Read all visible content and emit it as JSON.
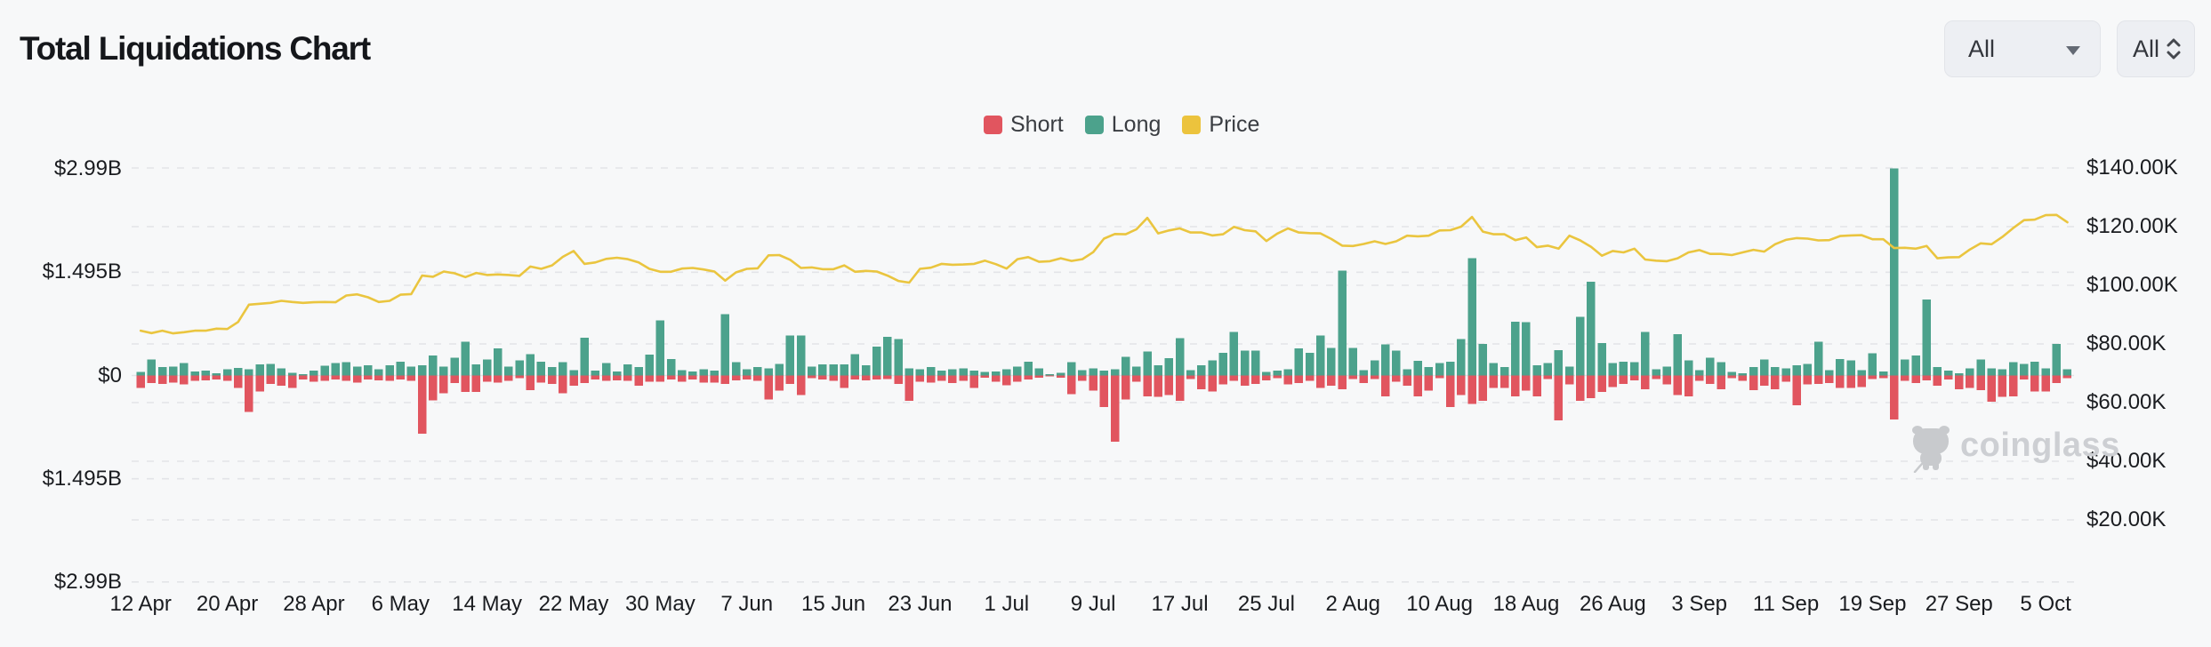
{
  "header": {
    "title": "Total Liquidations Chart"
  },
  "controls": {
    "symbol_select": {
      "value": "All"
    },
    "range_select": {
      "value": "All"
    }
  },
  "legend": {
    "items": [
      {
        "label": "Short",
        "color": "#e1555f"
      },
      {
        "label": "Long",
        "color": "#4ca28c"
      },
      {
        "label": "Price",
        "color": "#ecc33d"
      }
    ]
  },
  "watermark": {
    "text": "coinglass"
  },
  "colors": {
    "short": "#e1555f",
    "long": "#4ca28c",
    "price": "#eac53f",
    "gridline": "#e3e4e8",
    "background": "#f7f8f9"
  },
  "chart_data": {
    "type": "bar+line",
    "title": "Total Liquidations Chart",
    "grid": "dashed horizontal",
    "legend_position": "top-center",
    "x_tick_labels": [
      "12 Apr",
      "20 Apr",
      "28 Apr",
      "6 May",
      "14 May",
      "22 May",
      "30 May",
      "7 Jun",
      "15 Jun",
      "23 Jun",
      "1 Jul",
      "9 Jul",
      "17 Jul",
      "25 Jul",
      "2 Aug",
      "10 Aug",
      "18 Aug",
      "26 Aug",
      "3 Sep",
      "11 Sep",
      "19 Sep",
      "27 Sep",
      "5 Oct"
    ],
    "days_per_tick": 8,
    "left_axis": {
      "unit": "USD billions (liquidations)",
      "labels": [
        "$2.99B",
        "$1.495B",
        "$0",
        "$1.495B",
        "$2.99B"
      ],
      "values": [
        2.99,
        1.495,
        0,
        -1.495,
        -2.99
      ]
    },
    "right_axis": {
      "unit": "USD thousands (price)",
      "labels": [
        "$140.00K",
        "$120.00K",
        "$100.00K",
        "$80.00K",
        "$60.00K",
        "$40.00K",
        "$20.00K"
      ],
      "values": [
        140,
        120,
        100,
        80,
        60,
        40,
        20
      ]
    },
    "series": [
      {
        "name": "Long",
        "type": "bar",
        "direction": "up",
        "unit": "$B",
        "color": "#4ca28c",
        "values": [
          0.05,
          0.23,
          0.12,
          0.13,
          0.18,
          0.06,
          0.07,
          0.03,
          0.09,
          0.11,
          0.09,
          0.16,
          0.17,
          0.1,
          0.04,
          0.02,
          0.07,
          0.14,
          0.18,
          0.19,
          0.13,
          0.15,
          0.09,
          0.15,
          0.2,
          0.13,
          0.15,
          0.29,
          0.13,
          0.26,
          0.49,
          0.16,
          0.23,
          0.39,
          0.13,
          0.22,
          0.31,
          0.2,
          0.12,
          0.19,
          0.08,
          0.55,
          0.07,
          0.18,
          0.06,
          0.16,
          0.12,
          0.3,
          0.8,
          0.24,
          0.08,
          0.06,
          0.09,
          0.07,
          0.89,
          0.19,
          0.09,
          0.12,
          0.1,
          0.17,
          0.58,
          0.58,
          0.13,
          0.16,
          0.16,
          0.16,
          0.31,
          0.15,
          0.42,
          0.56,
          0.53,
          0.1,
          0.09,
          0.12,
          0.07,
          0.09,
          0.1,
          0.07,
          0.05,
          0.06,
          0.09,
          0.13,
          0.2,
          0.1,
          0.02,
          0.04,
          0.19,
          0.08,
          0.1,
          0.07,
          0.09,
          0.27,
          0.13,
          0.35,
          0.15,
          0.25,
          0.54,
          0.08,
          0.15,
          0.22,
          0.33,
          0.63,
          0.36,
          0.36,
          0.05,
          0.07,
          0.09,
          0.39,
          0.33,
          0.58,
          0.4,
          1.52,
          0.4,
          0.08,
          0.22,
          0.45,
          0.36,
          0.09,
          0.21,
          0.12,
          0.18,
          0.2,
          0.53,
          1.7,
          0.46,
          0.18,
          0.12,
          0.78,
          0.77,
          0.15,
          0.18,
          0.37,
          0.13,
          0.85,
          1.36,
          0.47,
          0.18,
          0.2,
          0.19,
          0.63,
          0.09,
          0.13,
          0.6,
          0.22,
          0.08,
          0.26,
          0.19,
          0.05,
          0.03,
          0.12,
          0.23,
          0.12,
          0.1,
          0.15,
          0.17,
          0.49,
          0.08,
          0.24,
          0.22,
          0.08,
          0.32,
          0.06,
          3.0,
          0.23,
          0.29,
          1.1,
          0.12,
          0.07,
          0.03,
          0.1,
          0.23,
          0.1,
          0.09,
          0.19,
          0.17,
          0.2,
          0.1,
          0.46,
          0.09
        ]
      },
      {
        "name": "Short",
        "type": "bar",
        "direction": "down",
        "unit": "$B",
        "color": "#e1555f",
        "values": [
          0.18,
          0.11,
          0.12,
          0.1,
          0.13,
          0.08,
          0.07,
          0.06,
          0.08,
          0.18,
          0.53,
          0.23,
          0.12,
          0.15,
          0.18,
          0.06,
          0.09,
          0.08,
          0.06,
          0.08,
          0.1,
          0.06,
          0.07,
          0.08,
          0.06,
          0.08,
          0.84,
          0.36,
          0.26,
          0.11,
          0.24,
          0.24,
          0.09,
          0.1,
          0.08,
          0.04,
          0.21,
          0.1,
          0.12,
          0.26,
          0.15,
          0.11,
          0.06,
          0.08,
          0.07,
          0.08,
          0.15,
          0.09,
          0.09,
          0.06,
          0.09,
          0.06,
          0.1,
          0.1,
          0.12,
          0.07,
          0.06,
          0.08,
          0.35,
          0.22,
          0.12,
          0.28,
          0.04,
          0.06,
          0.08,
          0.18,
          0.06,
          0.07,
          0.06,
          0.05,
          0.12,
          0.37,
          0.09,
          0.1,
          0.08,
          0.11,
          0.08,
          0.18,
          0.03,
          0.09,
          0.14,
          0.09,
          0.06,
          0.03,
          0.01,
          0.03,
          0.27,
          0.08,
          0.22,
          0.46,
          0.96,
          0.35,
          0.09,
          0.3,
          0.31,
          0.28,
          0.37,
          0.05,
          0.2,
          0.23,
          0.13,
          0.08,
          0.15,
          0.12,
          0.07,
          0.04,
          0.13,
          0.11,
          0.08,
          0.18,
          0.15,
          0.2,
          0.05,
          0.11,
          0.05,
          0.3,
          0.09,
          0.15,
          0.3,
          0.22,
          0.04,
          0.46,
          0.28,
          0.41,
          0.37,
          0.18,
          0.18,
          0.3,
          0.22,
          0.3,
          0.05,
          0.65,
          0.13,
          0.37,
          0.33,
          0.24,
          0.17,
          0.12,
          0.07,
          0.2,
          0.05,
          0.13,
          0.28,
          0.3,
          0.08,
          0.12,
          0.2,
          0.04,
          0.08,
          0.21,
          0.15,
          0.2,
          0.09,
          0.43,
          0.13,
          0.12,
          0.11,
          0.18,
          0.18,
          0.17,
          0.05,
          0.04,
          0.64,
          0.08,
          0.11,
          0.07,
          0.15,
          0.06,
          0.2,
          0.18,
          0.21,
          0.38,
          0.31,
          0.3,
          0.06,
          0.23,
          0.23,
          0.11,
          0.04
        ]
      },
      {
        "name": "Price",
        "type": "line",
        "unit": "$K",
        "color": "#eac53f",
        "values": [
          84.5,
          83.7,
          84.5,
          83.6,
          84.0,
          84.5,
          84.5,
          85.2,
          85.1,
          87.5,
          93.4,
          93.7,
          94.0,
          94.7,
          94.3,
          94.0,
          94.2,
          94.3,
          94.2,
          96.5,
          96.9,
          95.9,
          94.3,
          94.7,
          96.8,
          97.0,
          103.3,
          102.9,
          104.7,
          104.1,
          102.8,
          104.2,
          103.5,
          103.7,
          103.5,
          103.2,
          106.4,
          105.6,
          106.8,
          109.7,
          111.7,
          107.3,
          107.8,
          109.0,
          109.4,
          108.9,
          107.8,
          105.6,
          104.6,
          104.6,
          105.7,
          105.9,
          105.4,
          104.7,
          101.6,
          104.4,
          105.6,
          105.8,
          110.2,
          110.3,
          108.7,
          105.9,
          106.1,
          105.5,
          105.5,
          106.8,
          104.6,
          104.9,
          104.7,
          103.3,
          101.5,
          100.9,
          105.6,
          106.0,
          107.3,
          107.0,
          107.1,
          107.3,
          108.4,
          107.2,
          105.7,
          108.9,
          109.6,
          108.0,
          108.2,
          109.2,
          108.3,
          108.9,
          111.3,
          115.9,
          117.5,
          117.4,
          119.1,
          123.0,
          117.7,
          118.7,
          119.4,
          118.0,
          118.0,
          117.0,
          117.4,
          119.9,
          118.8,
          118.4,
          115.1,
          117.6,
          119.4,
          118.0,
          117.8,
          117.7,
          115.8,
          113.5,
          113.4,
          114.1,
          115.0,
          114.1,
          115.0,
          116.9,
          116.7,
          116.9,
          118.7,
          118.8,
          120.0,
          123.3,
          118.3,
          117.4,
          117.4,
          115.4,
          116.3,
          113.0,
          113.5,
          112.5,
          116.9,
          115.3,
          113.1,
          110.1,
          111.7,
          111.2,
          112.5,
          108.8,
          108.4,
          108.2,
          109.2,
          111.2,
          112.0,
          110.7,
          110.7,
          110.3,
          111.2,
          112.1,
          111.5,
          114.0,
          115.5,
          116.1,
          115.9,
          115.3,
          115.4,
          116.8,
          117.0,
          117.1,
          115.7,
          115.7,
          112.7,
          112.8,
          112.5,
          113.4,
          109.2,
          109.5,
          109.6,
          112.2,
          114.3,
          114.0,
          116.5,
          119.5,
          122.2,
          122.4,
          123.9,
          124.0,
          121.5
        ]
      }
    ]
  }
}
